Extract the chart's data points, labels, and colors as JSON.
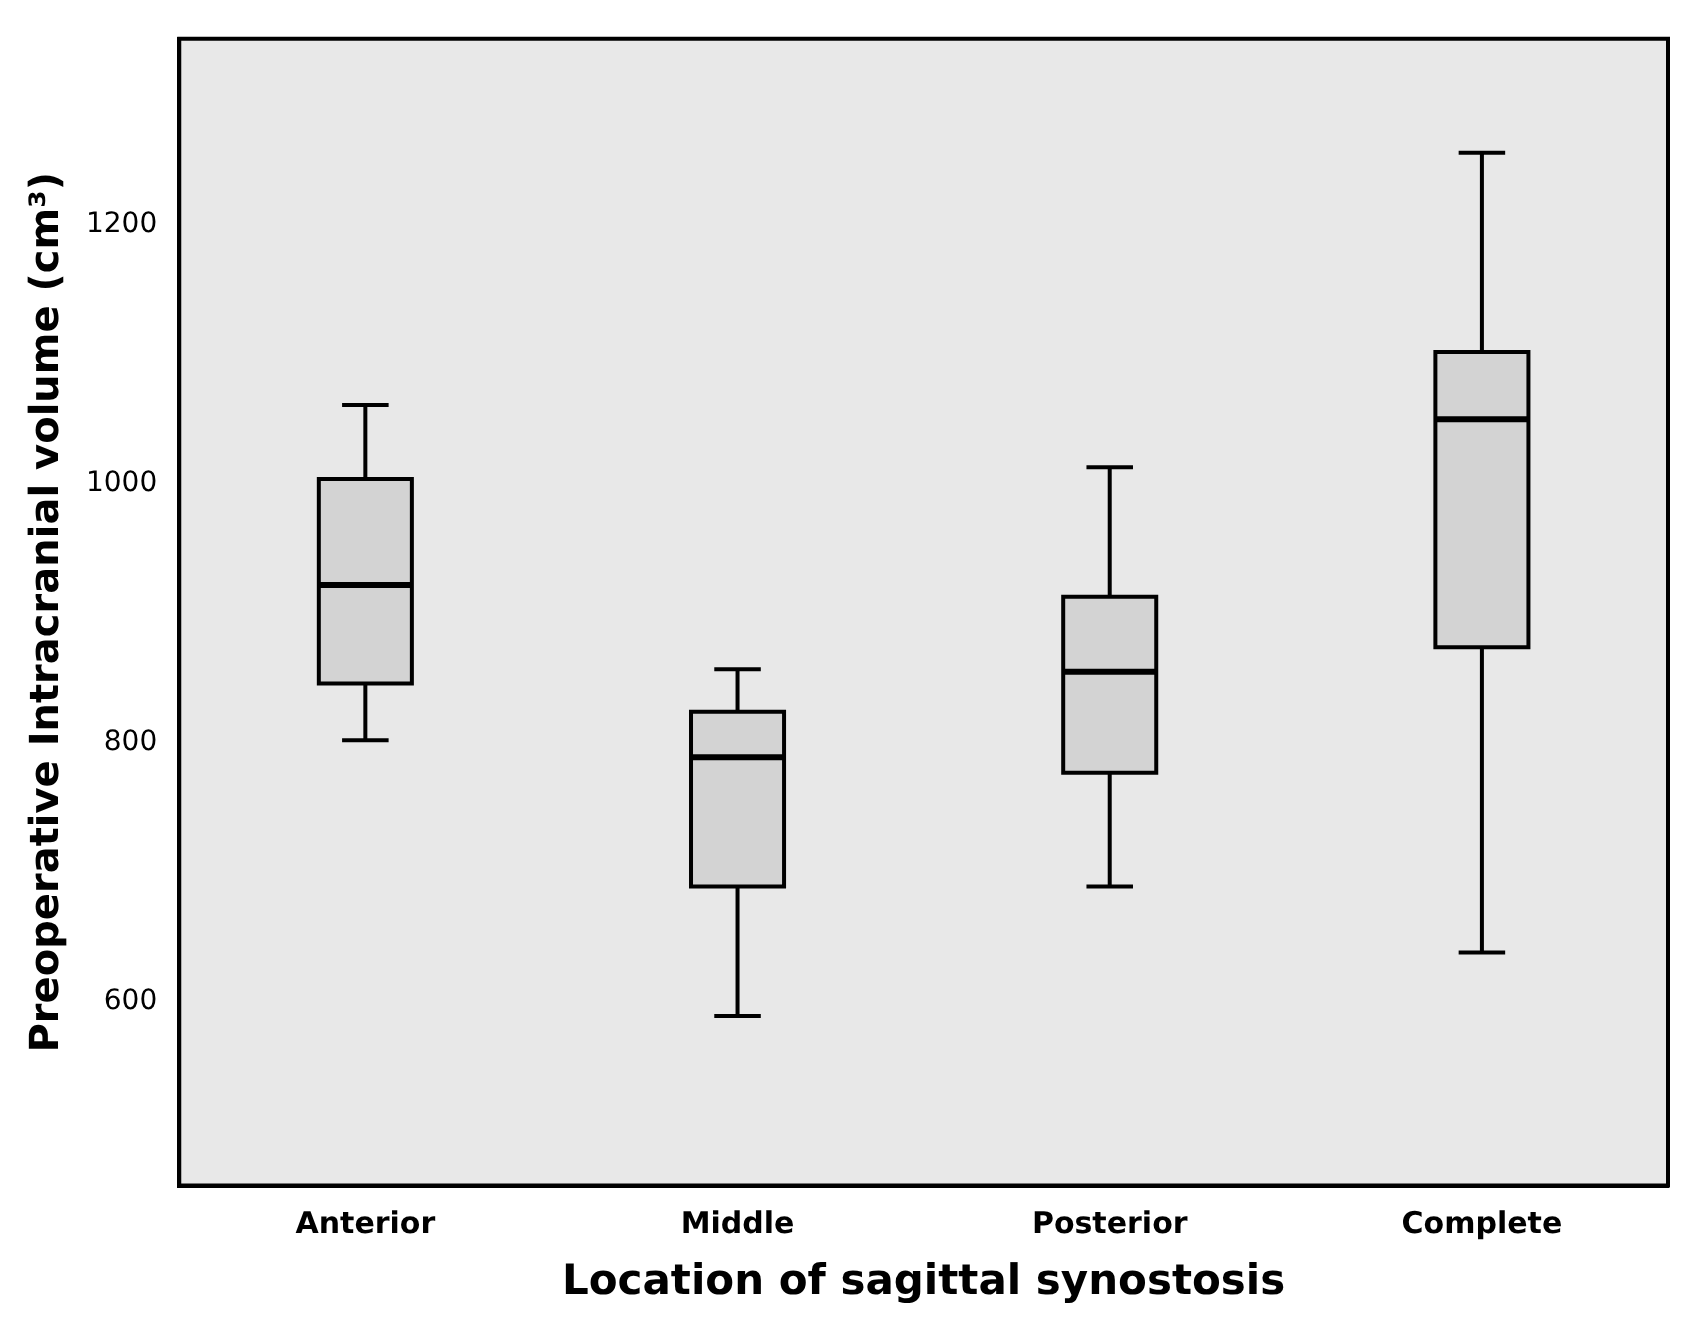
{
  "chart_data": {
    "type": "box",
    "xlabel": "Location of sagittal synostosis",
    "ylabel": "Preoperative Intracranial volume (cm³)",
    "categories": [
      "Anterior",
      "Middle",
      "Posterior",
      "Complete"
    ],
    "color": "#d3d3d3",
    "boxes": [
      {
        "low": 802,
        "q1": 846,
        "median": 922,
        "q3": 1004,
        "high": 1061
      },
      {
        "low": 589,
        "q1": 689,
        "median": 789,
        "q3": 824,
        "high": 857
      },
      {
        "low": 689,
        "q1": 777,
        "median": 855,
        "q3": 913,
        "high": 1013
      },
      {
        "low": 638,
        "q1": 874,
        "median": 1050,
        "q3": 1102,
        "high": 1256
      }
    ],
    "ylim": [
      458,
      1344
    ],
    "yticks": [
      600,
      800,
      1000,
      1200
    ],
    "grid": false,
    "legend": false
  }
}
